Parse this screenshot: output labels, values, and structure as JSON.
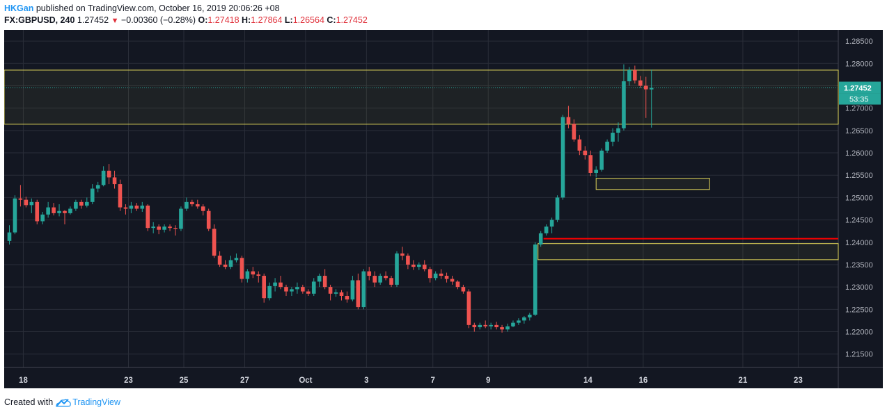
{
  "header": {
    "author": "HKGan",
    "published_text": "published on TradingView.com, October 16, 2019 20:06:26 +08",
    "symbol": "FX:GBPUSD, 240",
    "last": "1.27452",
    "arrow": "▼",
    "change": "−0.00360 (−0.28%)",
    "o_label": "O:",
    "o_value": "1.27418",
    "h_label": "H:",
    "h_value": "1.27864",
    "l_label": "L:",
    "l_value": "1.26564",
    "c_label": "C:",
    "c_value": "1.27452"
  },
  "footer": {
    "created_with": "Created with",
    "brand": "TradingView",
    "logo_icon": "tradingview-cloud-icon"
  },
  "colors": {
    "background": "#131722",
    "grid": "#2a2e39",
    "up": "#26a69a",
    "down": "#ef5350",
    "zone": "#e2d75a",
    "support": "#ff0000",
    "price_tag": "#26a69a"
  },
  "chart_data": {
    "type": "candlestick",
    "symbol": "FX:GBPUSD",
    "interval": "240",
    "ylim": [
      1.212,
      1.2875
    ],
    "y_ticks": [
      "1.28500",
      "1.28000",
      "1.27500",
      "1.27000",
      "1.26500",
      "1.26000",
      "1.25500",
      "1.25000",
      "1.24500",
      "1.24000",
      "1.23500",
      "1.23000",
      "1.22500",
      "1.22000",
      "1.21500"
    ],
    "x_ticks": [
      {
        "label": "18",
        "bar": 1
      },
      {
        "label": "23",
        "bar": 20
      },
      {
        "label": "25",
        "bar": 30
      },
      {
        "label": "27",
        "bar": 41
      },
      {
        "label": "Oct",
        "bar": 52
      },
      {
        "label": "3",
        "bar": 63
      },
      {
        "label": "7",
        "bar": 75
      },
      {
        "label": "9",
        "bar": 85
      },
      {
        "label": "14",
        "bar": 103
      },
      {
        "label": "16",
        "bar": 113
      },
      {
        "label": "21",
        "bar": 131
      },
      {
        "label": "23",
        "bar": 141
      }
    ],
    "last_price": "1.27452",
    "countdown": "53:35",
    "zones": [
      {
        "top": 1.2785,
        "bottom": 1.2664,
        "start_bar": 0,
        "end": "right"
      },
      {
        "top": 1.2543,
        "bottom": 1.2518,
        "start_bar": 106,
        "end_bar": 126.5
      },
      {
        "top": 1.2397,
        "bottom": 1.2361,
        "start_bar": 95.5,
        "end": "right"
      }
    ],
    "support_line": {
      "value": 1.2408,
      "start_bar": 96.5
    },
    "candles": [
      [
        1.2403,
        1.2438,
        1.2395,
        1.2422
      ],
      [
        1.2422,
        1.2505,
        1.2418,
        1.2498
      ],
      [
        1.2498,
        1.2528,
        1.248,
        1.2495
      ],
      [
        1.2495,
        1.2502,
        1.2478,
        1.2483
      ],
      [
        1.2483,
        1.2498,
        1.2465,
        1.249
      ],
      [
        1.249,
        1.2495,
        1.244,
        1.2447
      ],
      [
        1.2447,
        1.2468,
        1.244,
        1.2462
      ],
      [
        1.2462,
        1.249,
        1.2455,
        1.2478
      ],
      [
        1.2478,
        1.2488,
        1.246,
        1.2465
      ],
      [
        1.2465,
        1.2485,
        1.2458,
        1.247
      ],
      [
        1.247,
        1.2472,
        1.244,
        1.2465
      ],
      [
        1.2465,
        1.248,
        1.2462,
        1.2475
      ],
      [
        1.2475,
        1.2495,
        1.247,
        1.249
      ],
      [
        1.249,
        1.2495,
        1.2475,
        1.2482
      ],
      [
        1.2482,
        1.25,
        1.2478,
        1.249
      ],
      [
        1.249,
        1.253,
        1.2485,
        1.252
      ],
      [
        1.252,
        1.2535,
        1.2512,
        1.2528
      ],
      [
        1.2528,
        1.257,
        1.2525,
        1.256
      ],
      [
        1.256,
        1.2575,
        1.253,
        1.2545
      ],
      [
        1.2545,
        1.256,
        1.252,
        1.253
      ],
      [
        1.253,
        1.254,
        1.247,
        1.2478
      ],
      [
        1.2478,
        1.2485,
        1.2462,
        1.2475
      ],
      [
        1.2475,
        1.249,
        1.2465,
        1.2482
      ],
      [
        1.2482,
        1.2488,
        1.247,
        1.2475
      ],
      [
        1.2475,
        1.249,
        1.2468,
        1.2482
      ],
      [
        1.2482,
        1.2485,
        1.2425,
        1.2432
      ],
      [
        1.2432,
        1.2445,
        1.242,
        1.2435
      ],
      [
        1.2435,
        1.244,
        1.2418,
        1.2428
      ],
      [
        1.2428,
        1.244,
        1.2422,
        1.2435
      ],
      [
        1.2435,
        1.244,
        1.2425,
        1.2432
      ],
      [
        1.2432,
        1.2438,
        1.2415,
        1.243
      ],
      [
        1.243,
        1.248,
        1.2425,
        1.2475
      ],
      [
        1.2475,
        1.25,
        1.247,
        1.249
      ],
      [
        1.249,
        1.2495,
        1.248,
        1.2485
      ],
      [
        1.2485,
        1.2495,
        1.2475,
        1.248
      ],
      [
        1.248,
        1.2485,
        1.246,
        1.247
      ],
      [
        1.247,
        1.2475,
        1.2425,
        1.243
      ],
      [
        1.243,
        1.244,
        1.2365,
        1.237
      ],
      [
        1.237,
        1.238,
        1.2345,
        1.235
      ],
      [
        1.235,
        1.236,
        1.234,
        1.2345
      ],
      [
        1.2345,
        1.237,
        1.234,
        1.236
      ],
      [
        1.236,
        1.2375,
        1.2355,
        1.2365
      ],
      [
        1.2365,
        1.237,
        1.231,
        1.2318
      ],
      [
        1.2318,
        1.234,
        1.231,
        1.2335
      ],
      [
        1.2335,
        1.2345,
        1.232,
        1.2328
      ],
      [
        1.2328,
        1.2335,
        1.231,
        1.2325
      ],
      [
        1.2325,
        1.233,
        1.2265,
        1.2275
      ],
      [
        1.2275,
        1.231,
        1.227,
        1.2302
      ],
      [
        1.2302,
        1.232,
        1.229,
        1.231
      ],
      [
        1.231,
        1.2325,
        1.2295,
        1.23
      ],
      [
        1.23,
        1.2305,
        1.228,
        1.229
      ],
      [
        1.229,
        1.23,
        1.228,
        1.2295
      ],
      [
        1.2295,
        1.231,
        1.2285,
        1.23
      ],
      [
        1.23,
        1.2305,
        1.2285,
        1.229
      ],
      [
        1.229,
        1.2295,
        1.228,
        1.2285
      ],
      [
        1.2285,
        1.232,
        1.228,
        1.2312
      ],
      [
        1.2312,
        1.233,
        1.23,
        1.2325
      ],
      [
        1.2325,
        1.234,
        1.2295,
        1.23
      ],
      [
        1.23,
        1.2305,
        1.227,
        1.2285
      ],
      [
        1.2285,
        1.2295,
        1.2278,
        1.2288
      ],
      [
        1.2288,
        1.2293,
        1.227,
        1.228
      ],
      [
        1.228,
        1.229,
        1.2265,
        1.2272
      ],
      [
        1.2272,
        1.2325,
        1.2268,
        1.2315
      ],
      [
        1.2315,
        1.233,
        1.225,
        1.2255
      ],
      [
        1.2255,
        1.234,
        1.225,
        1.2335
      ],
      [
        1.2335,
        1.2345,
        1.2315,
        1.2325
      ],
      [
        1.2325,
        1.2335,
        1.23,
        1.231
      ],
      [
        1.231,
        1.233,
        1.2305,
        1.2325
      ],
      [
        1.2325,
        1.2335,
        1.2315,
        1.232
      ],
      [
        1.232,
        1.2325,
        1.23,
        1.2305
      ],
      [
        1.2305,
        1.238,
        1.23,
        1.2375
      ],
      [
        1.2375,
        1.239,
        1.236,
        1.237
      ],
      [
        1.237,
        1.2375,
        1.234,
        1.235
      ],
      [
        1.235,
        1.236,
        1.2338,
        1.2345
      ],
      [
        1.2345,
        1.2355,
        1.2338,
        1.235
      ],
      [
        1.235,
        1.236,
        1.2335,
        1.234
      ],
      [
        1.234,
        1.2345,
        1.231,
        1.232
      ],
      [
        1.232,
        1.2335,
        1.2315,
        1.233
      ],
      [
        1.233,
        1.234,
        1.2318,
        1.2325
      ],
      [
        1.2325,
        1.2332,
        1.231,
        1.2318
      ],
      [
        1.2318,
        1.2325,
        1.2305,
        1.2312
      ],
      [
        1.2312,
        1.2315,
        1.2295,
        1.23
      ],
      [
        1.23,
        1.2305,
        1.2285,
        1.229
      ],
      [
        1.229,
        1.2295,
        1.2208,
        1.2215
      ],
      [
        1.2215,
        1.222,
        1.22,
        1.221
      ],
      [
        1.221,
        1.222,
        1.2205,
        1.2215
      ],
      [
        1.2215,
        1.2225,
        1.2208,
        1.2212
      ],
      [
        1.2212,
        1.222,
        1.2205,
        1.2215
      ],
      [
        1.2215,
        1.2222,
        1.2205,
        1.221
      ],
      [
        1.221,
        1.2215,
        1.2198,
        1.2205
      ],
      [
        1.2205,
        1.2218,
        1.22,
        1.2212
      ],
      [
        1.2212,
        1.2225,
        1.221,
        1.222
      ],
      [
        1.222,
        1.223,
        1.2215,
        1.2225
      ],
      [
        1.2225,
        1.2235,
        1.2218,
        1.2232
      ],
      [
        1.2232,
        1.2242,
        1.2225,
        1.2238
      ],
      [
        1.2238,
        1.24,
        1.2235,
        1.2395
      ],
      [
        1.2395,
        1.2425,
        1.239,
        1.242
      ],
      [
        1.242,
        1.244,
        1.2415,
        1.2435
      ],
      [
        1.2435,
        1.2455,
        1.242,
        1.245
      ],
      [
        1.245,
        1.2505,
        1.2445,
        1.25
      ],
      [
        1.25,
        1.2685,
        1.2495,
        1.268
      ],
      [
        1.268,
        1.2705,
        1.2655,
        1.2665
      ],
      [
        1.2665,
        1.2675,
        1.2625,
        1.263
      ],
      [
        1.263,
        1.264,
        1.2595,
        1.2605
      ],
      [
        1.2605,
        1.2615,
        1.2585,
        1.2595
      ],
      [
        1.2595,
        1.2605,
        1.2548,
        1.2555
      ],
      [
        1.2555,
        1.257,
        1.2545,
        1.2562
      ],
      [
        1.2562,
        1.261,
        1.2558,
        1.2605
      ],
      [
        1.2605,
        1.263,
        1.26,
        1.2625
      ],
      [
        1.2625,
        1.2655,
        1.2615,
        1.2645
      ],
      [
        1.2645,
        1.2668,
        1.2625,
        1.2655
      ],
      [
        1.2655,
        1.2798,
        1.265,
        1.276
      ],
      [
        1.276,
        1.2792,
        1.275,
        1.2785
      ],
      [
        1.2785,
        1.2795,
        1.2755,
        1.2762
      ],
      [
        1.2762,
        1.2772,
        1.2745,
        1.275
      ],
      [
        1.275,
        1.277,
        1.2678,
        1.2742
      ],
      [
        1.27418,
        1.27864,
        1.26564,
        1.27452
      ]
    ]
  }
}
